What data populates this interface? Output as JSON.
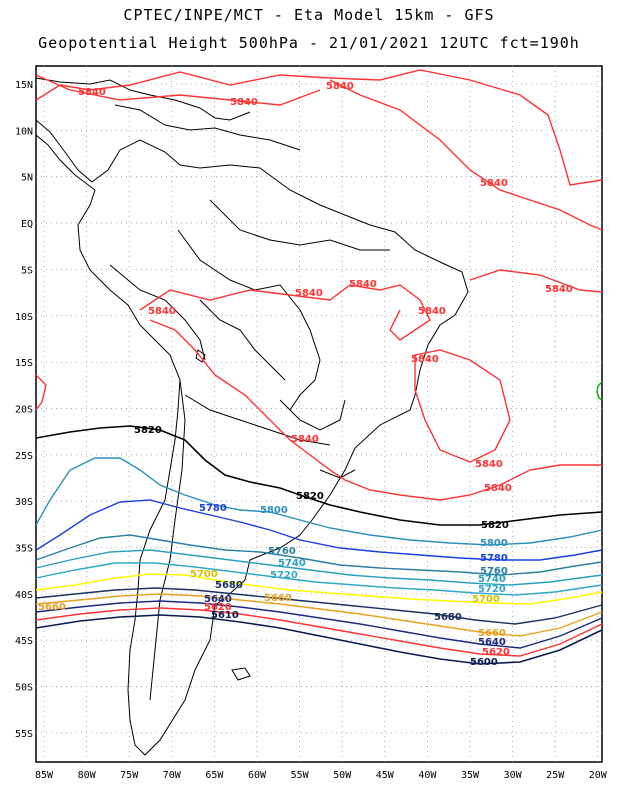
{
  "header": {
    "line1": "CPTEC/INPE/MCT -  Eta Model 15km - GFS",
    "line2": "Geopotential Height 500hPa - 21/01/2021 12UTC fct=190h"
  },
  "axes": {
    "lat_labels": [
      "15N",
      "10N",
      "5N",
      "EQ",
      "5S",
      "10S",
      "15S",
      "20S",
      "25S",
      "30S",
      "35S",
      "40S",
      "45S",
      "50S",
      "55S"
    ],
    "lon_labels": [
      "85W",
      "80W",
      "75W",
      "70W",
      "65W",
      "60W",
      "55W",
      "50W",
      "45W",
      "40W",
      "35W",
      "30W",
      "25W",
      "20W"
    ]
  },
  "contours": {
    "colors": {
      "c5840": "#ff3333",
      "c5820": "#000000",
      "c5800": "#2a8fbd",
      "c5780": "#1a3fe0",
      "c5760": "#2a7fa0",
      "c5740": "#2aa0c0",
      "c5720": "#30a8c8",
      "c5700": "#ffff00",
      "c5680": "#1a3060",
      "c5660": "#e8a020",
      "c5640": "#1a2a80",
      "c5620": "#ff3333",
      "c5600": "#0a1a50",
      "land": "#000000",
      "green": "#00b000"
    },
    "labels": {
      "l5840": "5840",
      "l5820": "5820",
      "l5800": "5800",
      "l5780": "5780",
      "l5760": "5760",
      "l5740": "5740",
      "l5720": "5720",
      "l5700": "5700",
      "l5680": "5680",
      "l5660": "5660",
      "l5640": "5640",
      "l5620": "5620",
      "l5610": "5610",
      "l5600": "5600"
    }
  }
}
